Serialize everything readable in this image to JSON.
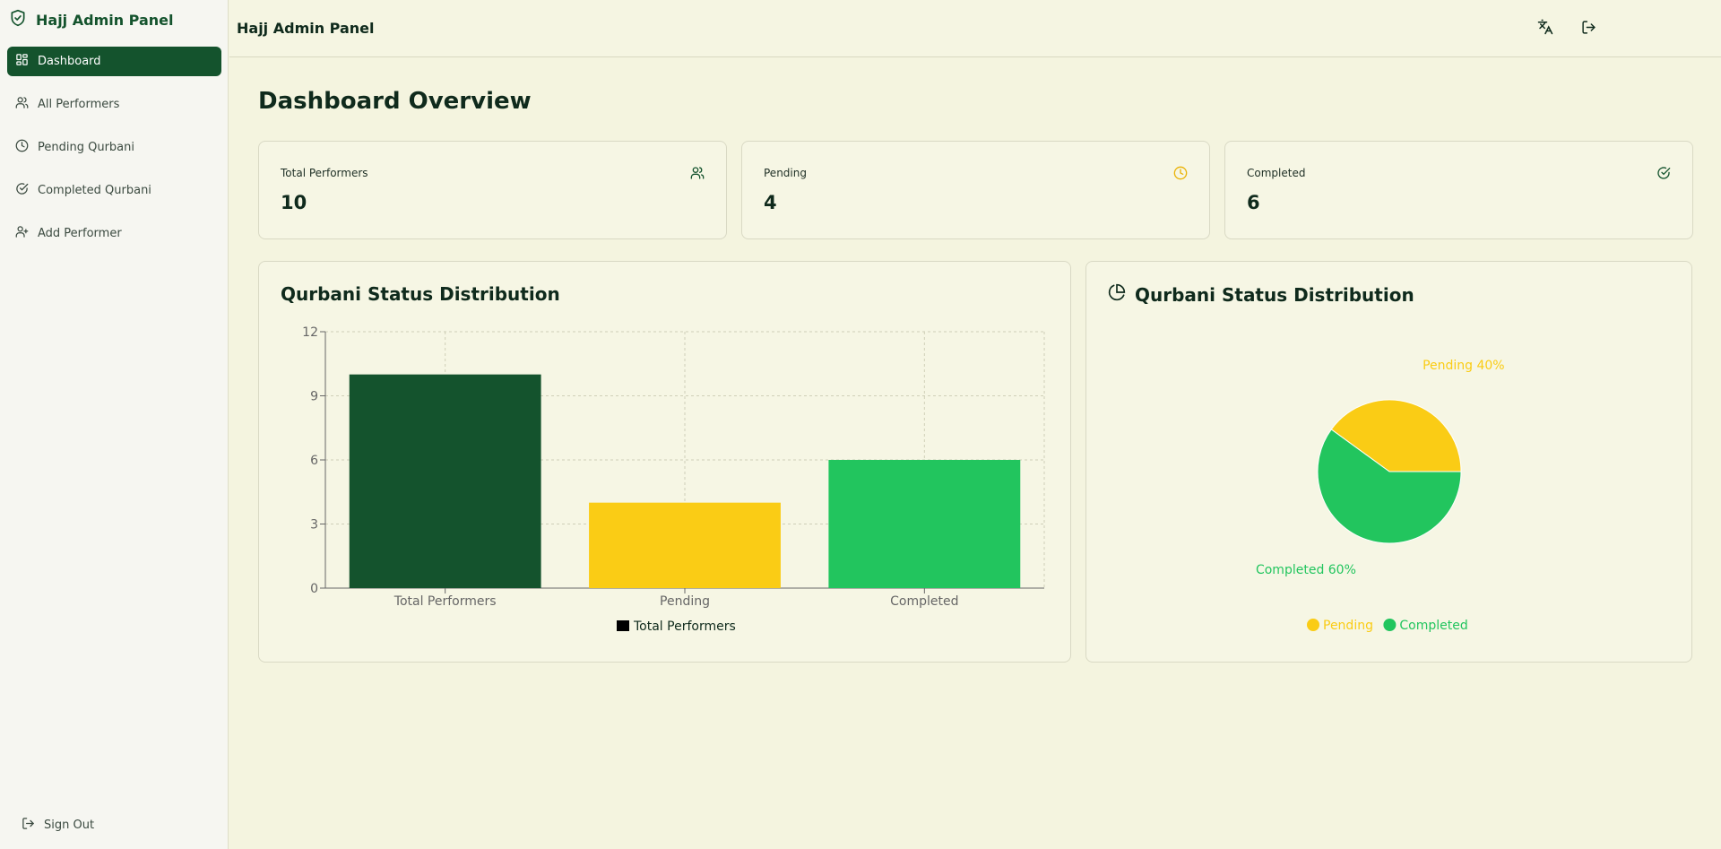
{
  "app": {
    "brand": "Hajj Admin Panel",
    "header_title": "Hajj Admin Panel"
  },
  "sidebar": {
    "items": [
      {
        "label": "Dashboard",
        "icon": "dashboard-icon",
        "active": true
      },
      {
        "label": "All Performers",
        "icon": "users-icon",
        "active": false
      },
      {
        "label": "Pending Qurbani",
        "icon": "clock-icon",
        "active": false
      },
      {
        "label": "Completed Qurbani",
        "icon": "check-circle-icon",
        "active": false
      },
      {
        "label": "Add Performer",
        "icon": "user-plus-icon",
        "active": false
      }
    ],
    "sign_out": "Sign Out"
  },
  "header": {
    "icons": [
      "translate-icon",
      "logout-icon"
    ]
  },
  "main": {
    "title": "Dashboard Overview",
    "stats": [
      {
        "label": "Total Performers",
        "value": "10",
        "icon": "users-icon",
        "color": "#14532d"
      },
      {
        "label": "Pending",
        "value": "4",
        "icon": "clock-icon",
        "color": "#eab308"
      },
      {
        "label": "Completed",
        "value": "6",
        "icon": "check-circle-icon",
        "color": "#14532d"
      }
    ],
    "bar_card_title": "Qurbani Status Distribution",
    "pie_card_title": "Qurbani Status Distribution"
  },
  "colors": {
    "dark_green": "#14532d",
    "yellow": "#facc15",
    "green": "#22c55e",
    "background": "#f4f4df"
  },
  "chart_data": [
    {
      "type": "bar",
      "categories": [
        "Total Performers",
        "Pending",
        "Completed"
      ],
      "values": [
        10,
        4,
        6
      ],
      "bar_colors": [
        "#14532d",
        "#facc15",
        "#22c55e"
      ],
      "ylim": [
        0,
        12
      ],
      "yticks": [
        0,
        3,
        6,
        9,
        12
      ],
      "grid": true,
      "legend": [
        {
          "name": "Total Performers",
          "color": "#000000"
        }
      ],
      "legend_position": "bottom"
    },
    {
      "type": "pie",
      "labels": [
        "Pending",
        "Completed"
      ],
      "values": [
        4,
        6
      ],
      "slice_labels": [
        "Pending 40%",
        "Completed 60%"
      ],
      "colors": [
        "#facc15",
        "#22c55e"
      ],
      "legend": [
        "Pending",
        "Completed"
      ],
      "legend_position": "bottom"
    }
  ]
}
